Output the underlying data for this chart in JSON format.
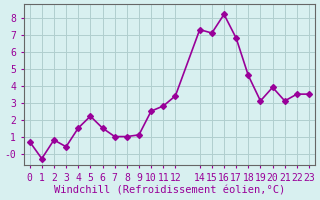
{
  "x": [
    0,
    1,
    2,
    3,
    4,
    5,
    6,
    7,
    8,
    9,
    10,
    11,
    12,
    14,
    15,
    16,
    17,
    18,
    19,
    20,
    21,
    22,
    23
  ],
  "y": [
    0.7,
    -0.3,
    0.8,
    0.4,
    1.5,
    2.2,
    1.5,
    1.0,
    1.0,
    1.1,
    2.5,
    2.8,
    3.4,
    7.3,
    7.1,
    8.2,
    6.8,
    4.6,
    3.1,
    3.9,
    3.1,
    3.5,
    3.5
  ],
  "x_ticks": [
    0,
    1,
    2,
    3,
    4,
    5,
    6,
    7,
    8,
    9,
    10,
    11,
    12,
    14,
    15,
    16,
    17,
    18,
    19,
    20,
    21,
    22,
    23
  ],
  "x_tick_labels": [
    "0",
    "1",
    "2",
    "3",
    "4",
    "5",
    "6",
    "7",
    "8",
    "9",
    "10",
    "11",
    "12",
    "14",
    "15",
    "16",
    "17",
    "18",
    "19",
    "20",
    "21",
    "22",
    "23"
  ],
  "y_ticks": [
    0,
    1,
    2,
    3,
    4,
    5,
    6,
    7,
    8
  ],
  "y_tick_labels": [
    "-0",
    "1",
    "2",
    "3",
    "4",
    "5",
    "6",
    "7",
    "8"
  ],
  "xlabel": "Windchill (Refroidissement éolien,°C)",
  "xlim": [
    -0.5,
    23.5
  ],
  "ylim": [
    -0.7,
    8.8
  ],
  "line_color": "#990099",
  "marker": "D",
  "marker_size": 3,
  "line_width": 1.2,
  "bg_color": "#d8f0f0",
  "grid_color": "#b0cece",
  "tick_label_color": "#990099",
  "xlabel_color": "#990099",
  "xlabel_fontsize": 7.5,
  "tick_fontsize": 7
}
